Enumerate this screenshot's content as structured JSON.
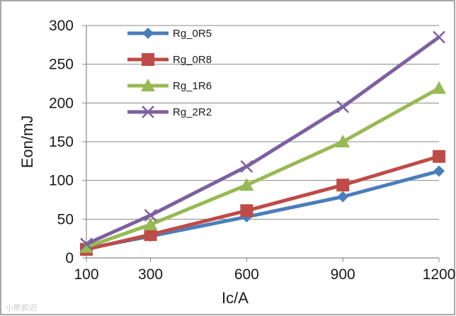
{
  "chart_data": {
    "type": "line",
    "title": "",
    "xlabel": "Ic/A",
    "ylabel": "Eon/mJ",
    "x": [
      100,
      300,
      600,
      900,
      1200
    ],
    "xtick_labels": [
      "100",
      "300",
      "600",
      "900",
      "1200"
    ],
    "ylim": [
      0,
      300
    ],
    "yticks": [
      0,
      50,
      100,
      150,
      200,
      250,
      300
    ],
    "xlim": [
      100,
      1200
    ],
    "grid": "horizontal",
    "legend_position": "top-left",
    "series": [
      {
        "name": "Rg_0R5",
        "color": "#4a7ebb",
        "marker": "diamond",
        "values": [
          12,
          28,
          53,
          79,
          112
        ]
      },
      {
        "name": "Rg_0R8",
        "color": "#be4b48",
        "marker": "square",
        "values": [
          11,
          30,
          61,
          94,
          131
        ]
      },
      {
        "name": "Rg_1R6",
        "color": "#98b954",
        "marker": "triangle",
        "values": [
          14,
          43,
          94,
          150,
          219
        ]
      },
      {
        "name": "Rg_2R2",
        "color": "#7d60a0",
        "marker": "x",
        "values": [
          18,
          55,
          118,
          195,
          285
        ]
      }
    ]
  },
  "watermark_text": "小熊抓识"
}
